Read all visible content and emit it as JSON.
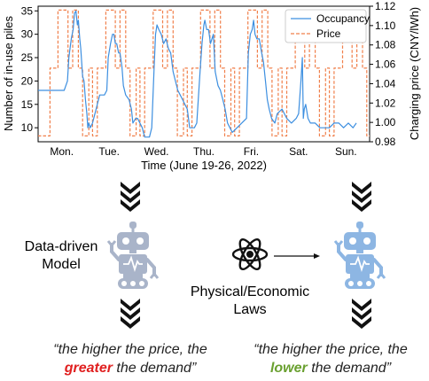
{
  "chart_data": {
    "type": "line",
    "xlabel": "Time (June 19-26, 2022)",
    "ylabel": "Number of in-use piles",
    "y2label": "Charging price (CNY/lWh)",
    "ylim": [
      7,
      36
    ],
    "y2lim": [
      0.98,
      1.12
    ],
    "yticks": [
      "10",
      "15",
      "20",
      "25",
      "30",
      "35"
    ],
    "y2ticks": [
      "0.98",
      "1.00",
      "1.02",
      "1.04",
      "1.06",
      "1.08",
      "1.10",
      "1.12"
    ],
    "xticks": [
      "Mon.",
      "Tue.",
      "Wed.",
      "Thu.",
      "Fri.",
      "Sat.",
      "Sun."
    ],
    "legend_position": "top-right",
    "series": [
      {
        "name": "Occupancy",
        "color": "#3d8fe0",
        "axis": "left",
        "x": [
          0.0,
          0.55,
          0.62,
          0.65,
          0.7,
          0.74,
          0.77,
          0.8,
          0.83,
          0.85,
          0.88,
          0.9,
          0.94,
          0.97,
          1.0,
          1.03,
          1.05,
          1.07,
          1.1,
          1.15,
          1.2,
          1.3,
          1.4,
          1.45,
          1.48,
          1.53,
          1.57,
          1.6,
          1.63,
          1.66,
          1.7,
          1.73,
          1.77,
          1.8,
          1.85,
          1.92,
          1.97,
          2.0,
          2.06,
          2.1,
          2.2,
          2.25,
          2.35,
          2.4,
          2.45,
          2.48,
          2.51,
          2.55,
          2.6,
          2.65,
          2.7,
          2.75,
          2.8,
          2.85,
          2.9,
          2.95,
          3.0,
          3.05,
          3.1,
          3.15,
          3.2,
          3.3,
          3.35,
          3.42,
          3.46,
          3.5,
          3.52,
          3.56,
          3.6,
          3.64,
          3.7,
          3.74,
          3.8,
          3.85,
          3.9,
          3.95,
          4.0,
          4.05,
          4.1,
          4.2,
          4.3,
          4.4,
          4.44,
          4.48,
          4.52,
          4.55,
          4.58,
          4.62,
          4.67,
          4.72,
          4.76,
          4.8,
          4.84,
          4.88,
          4.93,
          5.0,
          5.05,
          5.15,
          5.25,
          5.35,
          5.45,
          5.5,
          5.55,
          5.58,
          5.6,
          5.62,
          5.65,
          5.7,
          5.75,
          5.85,
          5.95,
          6.05,
          6.15,
          6.25,
          6.35,
          6.45,
          6.55,
          6.65,
          6.72
        ],
        "values": [
          18,
          18,
          20,
          25,
          29,
          31,
          34.5,
          35,
          32,
          33,
          29,
          27,
          21,
          20,
          16,
          13,
          10,
          11,
          10,
          11,
          13,
          17,
          17,
          18,
          25,
          28,
          30,
          30,
          28,
          28,
          26,
          26,
          23,
          19,
          17,
          16,
          14,
          11,
          12,
          12,
          10,
          8,
          8,
          10,
          23,
          30,
          32,
          31,
          30,
          28,
          29,
          27,
          26,
          22,
          20,
          18,
          17,
          16,
          15,
          14,
          10,
          10,
          11,
          22,
          28,
          32,
          33,
          31,
          31,
          28,
          30,
          22,
          19,
          18,
          16,
          14,
          11,
          10,
          9,
          10,
          11,
          12,
          26,
          30,
          31,
          33,
          30,
          29,
          29,
          26,
          24,
          20,
          16,
          14,
          12,
          11,
          13,
          14,
          12,
          11,
          12,
          13,
          20,
          25,
          12,
          14,
          15,
          12,
          11,
          11,
          10,
          10,
          10,
          11,
          11,
          10,
          11,
          10,
          11
        ]
      },
      {
        "name": "Price",
        "color": "#f07f4a",
        "axis": "right",
        "x": [
          0.0,
          0.25,
          0.25,
          0.42,
          0.42,
          0.63,
          0.63,
          0.73,
          0.73,
          0.85,
          0.85,
          0.94,
          0.94,
          1.07,
          1.07,
          1.15,
          1.15,
          1.25,
          1.25,
          1.43,
          1.43,
          1.63,
          1.63,
          1.73,
          1.73,
          1.85,
          1.85,
          1.94,
          1.94,
          2.07,
          2.07,
          2.15,
          2.15,
          2.25,
          2.25,
          2.43,
          2.43,
          2.63,
          2.63,
          2.73,
          2.73,
          2.85,
          2.85,
          2.94,
          2.94,
          3.07,
          3.07,
          3.15,
          3.15,
          3.25,
          3.25,
          3.43,
          3.43,
          3.63,
          3.63,
          3.73,
          3.73,
          3.85,
          3.85,
          3.94,
          3.94,
          4.07,
          4.07,
          4.15,
          4.15,
          4.25,
          4.25,
          4.43,
          4.43,
          4.63,
          4.63,
          4.73,
          4.73,
          4.85,
          4.85,
          4.94,
          4.94,
          5.07,
          5.07,
          5.15,
          5.15,
          5.25,
          5.25,
          5.43,
          5.43,
          5.63,
          5.63,
          5.73,
          5.73,
          5.85,
          5.85,
          5.94,
          5.94,
          6.07,
          6.07,
          6.15,
          6.15,
          6.25,
          6.25,
          6.43,
          6.43,
          6.63,
          6.63,
          6.73,
          6.73,
          6.85,
          6.85,
          6.94,
          6.94,
          7.0
        ],
        "values": [
          0.986,
          0.986,
          1.056,
          1.056,
          1.116,
          1.116,
          1.056,
          1.056,
          1.116,
          1.116,
          1.056,
          1.056,
          0.986,
          0.986,
          1.056,
          1.056,
          0.986,
          0.986,
          1.056,
          1.056,
          1.116,
          1.116,
          1.056,
          1.056,
          1.116,
          1.116,
          1.056,
          1.056,
          0.986,
          0.986,
          1.056,
          1.056,
          0.986,
          0.986,
          1.056,
          1.056,
          1.116,
          1.116,
          1.056,
          1.056,
          1.116,
          1.116,
          1.056,
          1.056,
          0.986,
          0.986,
          1.056,
          1.056,
          0.986,
          0.986,
          1.056,
          1.056,
          1.116,
          1.116,
          1.056,
          1.056,
          1.116,
          1.116,
          1.056,
          1.056,
          0.986,
          0.986,
          1.056,
          1.056,
          0.986,
          0.986,
          1.056,
          1.056,
          1.116,
          1.116,
          1.056,
          1.056,
          1.116,
          1.116,
          1.056,
          1.056,
          0.986,
          0.986,
          1.056,
          1.056,
          0.986,
          0.986,
          1.056,
          1.056,
          1.116,
          1.116,
          1.056,
          1.056,
          1.116,
          1.116,
          1.056,
          1.056,
          0.986,
          0.986,
          1.056,
          1.056,
          0.986,
          0.986,
          1.056,
          1.056,
          1.116,
          1.116,
          1.056,
          1.056,
          1.116,
          1.116,
          1.056,
          1.056,
          0.986,
          0.986
        ]
      }
    ]
  },
  "diagram": {
    "left_label": "Data-driven\nModel",
    "middle_label": "Physical/Economic\nLaws",
    "left_quote_line1": "“the higher the price, the",
    "left_quote_emph": "greater",
    "left_quote_rest": " the demand”",
    "left_emph_color": "#e02020",
    "right_quote_line1": "“the higher the price, the",
    "right_quote_emph": "lower",
    "right_quote_rest": " the demand”",
    "right_emph_color": "#6aa030",
    "left_robot_color": "#a9b4c9",
    "right_robot_color": "#8db6e3",
    "left_robot_icon": "robot-icon",
    "right_robot_icon": "robot-icon",
    "atom_icon": "atom-icon",
    "arrow_icon": "arrow-right-icon",
    "chevron_icon": "chevron-down-triple-icon"
  }
}
